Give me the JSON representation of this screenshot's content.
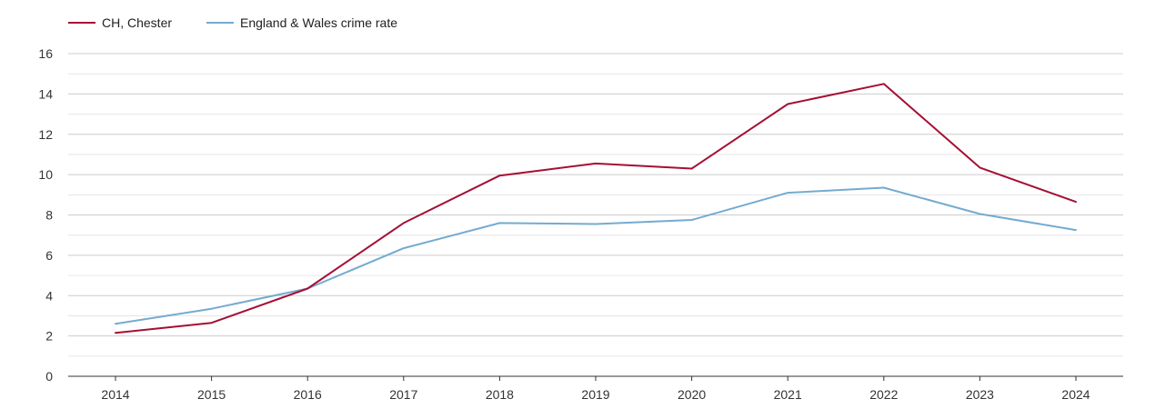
{
  "chart_data": {
    "type": "line",
    "title": "",
    "xlabel": "",
    "ylabel": "",
    "categories": [
      "2014",
      "2015",
      "2016",
      "2017",
      "2018",
      "2019",
      "2020",
      "2021",
      "2022",
      "2023",
      "2024"
    ],
    "yticks": [
      "0",
      "2",
      "4",
      "6",
      "8",
      "10",
      "12",
      "14",
      "16"
    ],
    "ylim": [
      0,
      16
    ],
    "grid": true,
    "legend_position": "top-left",
    "series": [
      {
        "name": "CH, Chester",
        "color": "#a50f34",
        "values": [
          2.15,
          2.65,
          4.35,
          7.6,
          9.95,
          10.55,
          10.3,
          13.5,
          14.5,
          10.35,
          8.65
        ]
      },
      {
        "name": "England & Wales crime rate",
        "color": "#74abd0",
        "values": [
          2.6,
          3.35,
          4.35,
          6.35,
          7.6,
          7.55,
          7.75,
          9.1,
          9.35,
          8.05,
          7.25
        ]
      }
    ]
  }
}
